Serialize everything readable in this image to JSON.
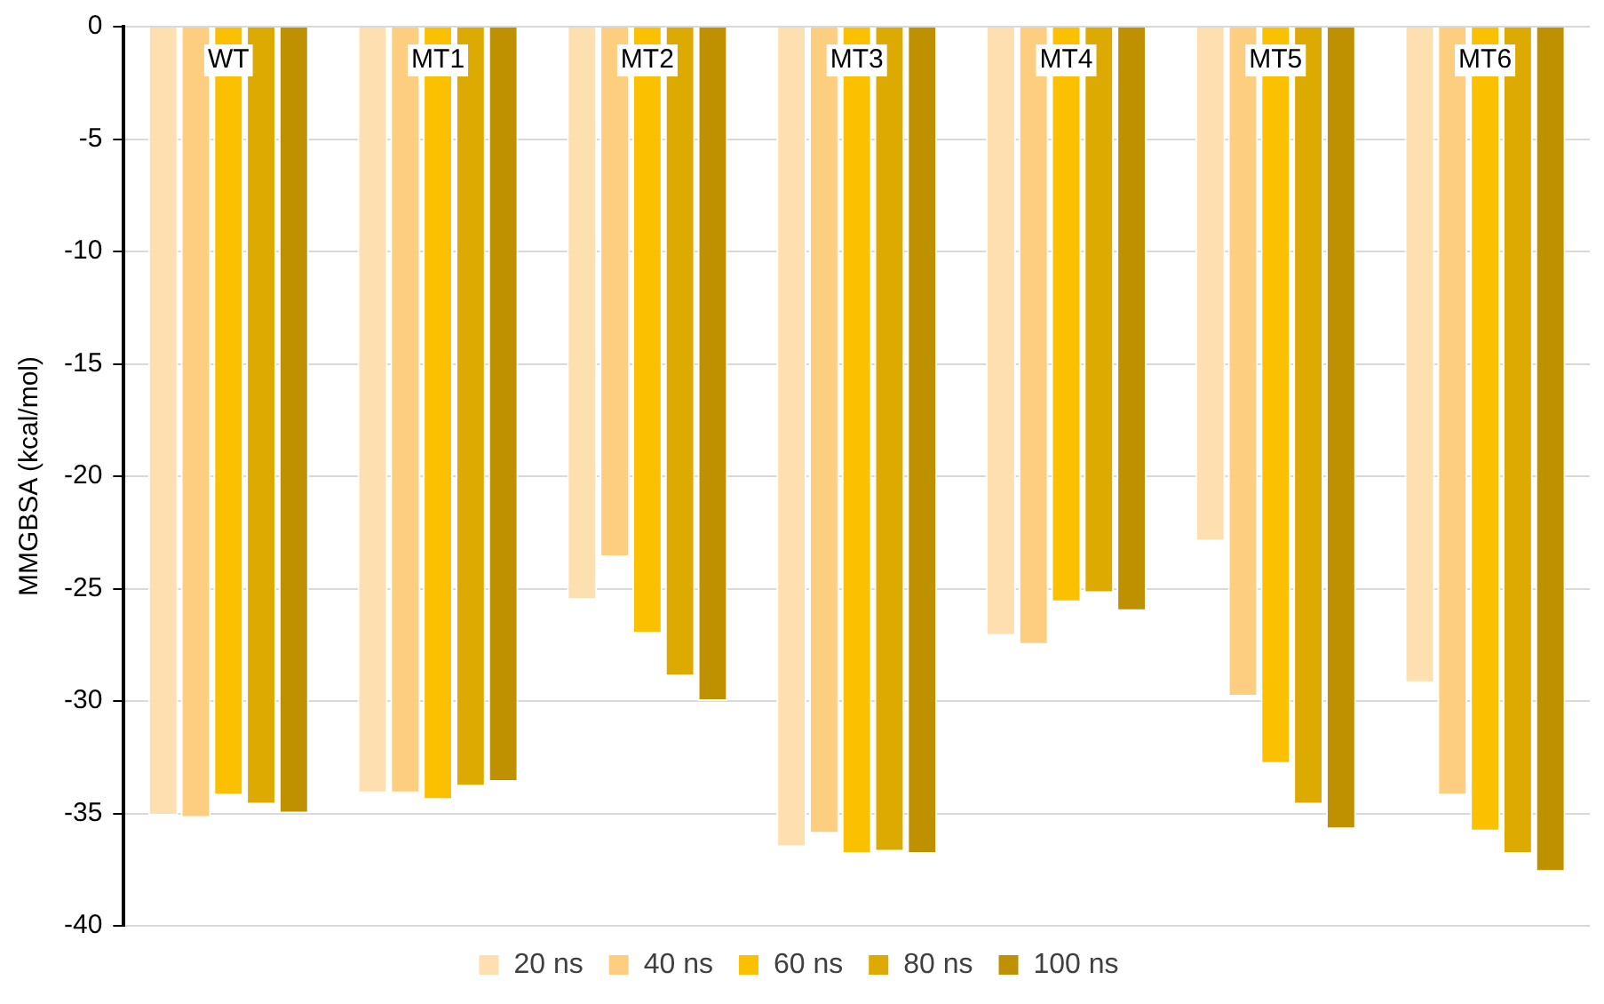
{
  "chart_data": {
    "type": "bar",
    "ylabel": "MMGBSA (kcal/mol)",
    "categories": [
      "WT",
      "MT1",
      "MT2",
      "MT3",
      "MT4",
      "MT5",
      "MT6"
    ],
    "series": [
      {
        "name": "20 ns",
        "color": "#fddfb0",
        "values": [
          -35.1,
          -34.1,
          -25.5,
          -36.5,
          -27.1,
          -22.9,
          -29.2
        ]
      },
      {
        "name": "40 ns",
        "color": "#fdcd80",
        "values": [
          -35.2,
          -34.1,
          -23.6,
          -35.9,
          -27.5,
          -29.8,
          -34.2
        ]
      },
      {
        "name": "60 ns",
        "color": "#fbc000",
        "values": [
          -34.2,
          -34.4,
          -27.0,
          -36.8,
          -25.6,
          -32.8,
          -35.8
        ]
      },
      {
        "name": "80 ns",
        "color": "#dcaa00",
        "values": [
          -34.6,
          -33.8,
          -28.9,
          -36.7,
          -25.2,
          -34.6,
          -36.8
        ]
      },
      {
        "name": "100 ns",
        "color": "#bf9000",
        "values": [
          -35.0,
          -33.6,
          -30.0,
          -36.8,
          -26.0,
          -35.7,
          -37.6
        ]
      }
    ],
    "ylim": [
      -40,
      0
    ],
    "yticks": [
      -40,
      -35,
      -30,
      -25,
      -20,
      -15,
      -10,
      -5,
      0
    ],
    "grid": "y",
    "legend": "bottom"
  }
}
